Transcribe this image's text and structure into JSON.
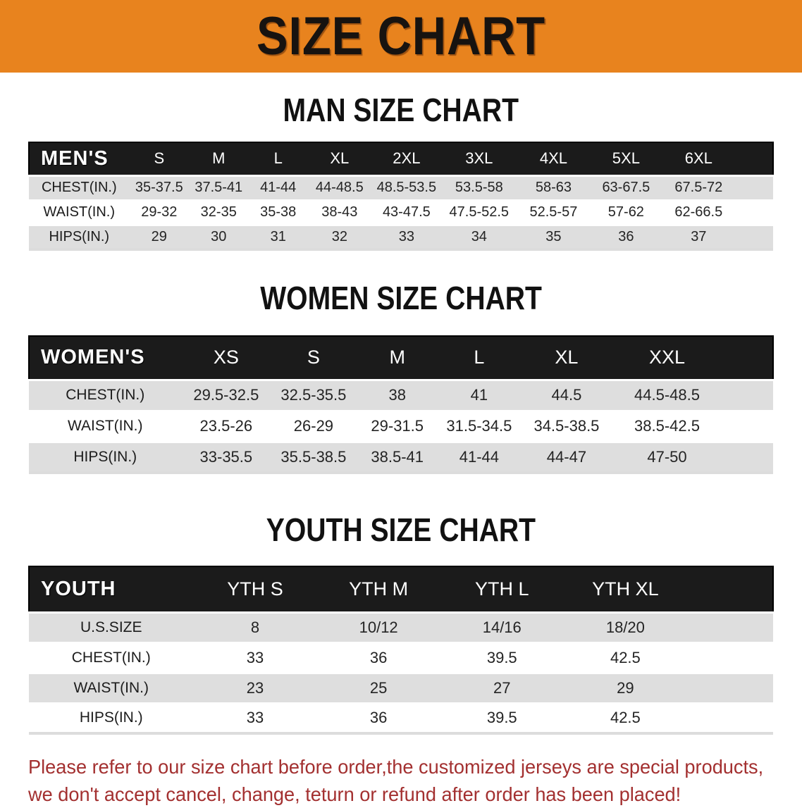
{
  "banner": {
    "title": "SIZE CHART"
  },
  "colors": {
    "banner_bg": "#E8831E",
    "header_bar": "#1B1B1B",
    "header_bar_text": "#FFFFFF",
    "row_alt": "#DEDEDE",
    "row_text": "#242424",
    "heading_text": "#111111",
    "disclaimer_text": "#A33030"
  },
  "chart_data": [
    {
      "type": "table",
      "key": "men",
      "title": "MAN SIZE CHART",
      "corner_label": "MEN'S",
      "columns": [
        "S",
        "M",
        "L",
        "XL",
        "2XL",
        "3XL",
        "4XL",
        "5XL",
        "6XL"
      ],
      "rows": [
        {
          "label": "CHEST(IN.)",
          "values": [
            "35-37.5",
            "37.5-41",
            "41-44",
            "44-48.5",
            "48.5-53.5",
            "53.5-58",
            "58-63",
            "63-67.5",
            "67.5-72"
          ]
        },
        {
          "label": "WAIST(IN.)",
          "values": [
            "29-32",
            "32-35",
            "35-38",
            "38-43",
            "43-47.5",
            "47.5-52.5",
            "52.5-57",
            "57-62",
            "62-66.5"
          ]
        },
        {
          "label": "HIPS(IN.)",
          "values": [
            "29",
            "30",
            "31",
            "32",
            "33",
            "34",
            "35",
            "36",
            "37"
          ]
        }
      ]
    },
    {
      "type": "table",
      "key": "women",
      "title": "WOMEN SIZE CHART",
      "corner_label": "WOMEN'S",
      "columns": [
        "XS",
        "S",
        "M",
        "L",
        "XL",
        "XXL"
      ],
      "rows": [
        {
          "label": "CHEST(IN.)",
          "values": [
            "29.5-32.5",
            "32.5-35.5",
            "38",
            "41",
            "44.5",
            "44.5-48.5"
          ]
        },
        {
          "label": "WAIST(IN.)",
          "values": [
            "23.5-26",
            "26-29",
            "29-31.5",
            "31.5-34.5",
            "34.5-38.5",
            "38.5-42.5"
          ]
        },
        {
          "label": "HIPS(IN.)",
          "values": [
            "33-35.5",
            "35.5-38.5",
            "38.5-41",
            "41-44",
            "44-47",
            "47-50"
          ]
        }
      ]
    },
    {
      "type": "table",
      "key": "youth",
      "title": "YOUTH SIZE CHART",
      "corner_label": "YOUTH",
      "columns": [
        "YTH S",
        "YTH M",
        "YTH L",
        "YTH XL"
      ],
      "rows": [
        {
          "label": "U.S.SIZE",
          "values": [
            "8",
            "10/12",
            "14/16",
            "18/20"
          ]
        },
        {
          "label": "CHEST(IN.)",
          "values": [
            "33",
            "36",
            "39.5",
            "42.5"
          ]
        },
        {
          "label": "WAIST(IN.)",
          "values": [
            "23",
            "25",
            "27",
            "29"
          ]
        },
        {
          "label": "HIPS(IN.)",
          "values": [
            "33",
            "36",
            "39.5",
            "42.5"
          ]
        }
      ]
    }
  ],
  "disclaimer": {
    "line1": "Please refer to our size chart before order,the customized jerseys are special products,",
    "line2": "we don't accept cancel, change, teturn or refund after order has been placed!"
  }
}
